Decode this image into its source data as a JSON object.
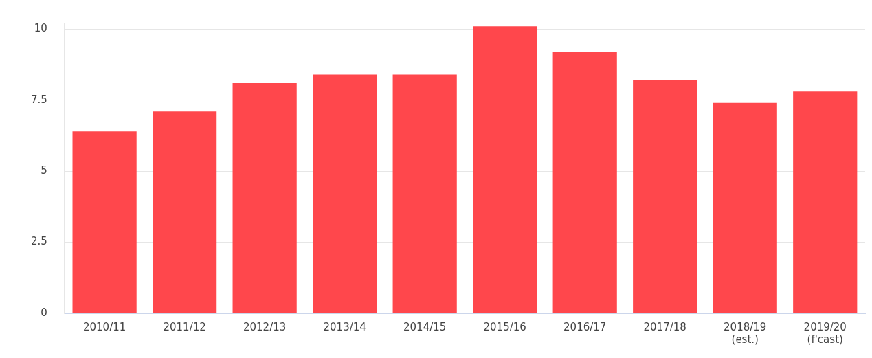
{
  "chart_data": {
    "type": "bar",
    "categories": [
      "2010/11",
      "2011/12",
      "2012/13",
      "2013/14",
      "2014/15",
      "2015/16",
      "2016/17",
      "2017/18",
      "2018/19\n(est.)",
      "2019/20\n(f'cast)"
    ],
    "values": [
      6.4,
      7.1,
      8.1,
      8.4,
      8.4,
      10.1,
      9.2,
      8.2,
      7.4,
      7.8
    ],
    "color": "#ff474c",
    "ylim": [
      0,
      10.2
    ],
    "yticks": [
      0,
      2.5,
      5,
      7.5,
      10
    ],
    "grid": "y"
  }
}
